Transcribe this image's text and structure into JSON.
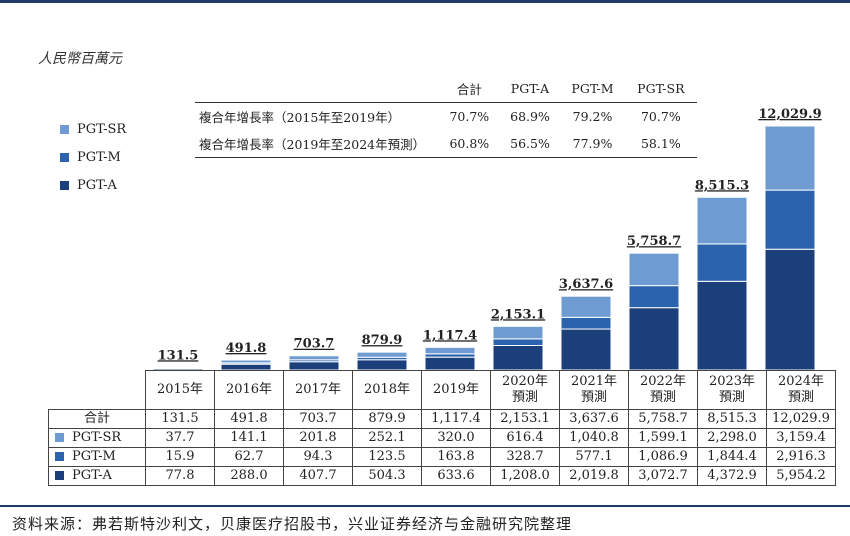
{
  "unit_label": "人民幣百萬元",
  "colors": {
    "pgt_a": "#1b3f7a",
    "pgt_m": "#2c63ad",
    "pgt_sr": "#6d9bd2",
    "rule": "#1f3a6b"
  },
  "legend": [
    {
      "name": "PGT-SR",
      "color": "#6d9bd2"
    },
    {
      "name": "PGT-M",
      "color": "#2c63ad"
    },
    {
      "name": "PGT-A",
      "color": "#1b3f7a"
    }
  ],
  "cagr_table": {
    "headers": [
      "合計",
      "PGT-A",
      "PGT-M",
      "PGT-SR"
    ],
    "rows": [
      {
        "label": "複合年增長率（2015年至2019年）",
        "values": [
          "70.7%",
          "68.9%",
          "79.2%",
          "70.7%"
        ]
      },
      {
        "label": "複合年增長率（2019年至2024年預測）",
        "values": [
          "60.8%",
          "56.5%",
          "77.9%",
          "58.1%"
        ]
      }
    ]
  },
  "chart_data": {
    "type": "bar",
    "stacked": true,
    "categories": [
      "2015年",
      "2016年",
      "2017年",
      "2018年",
      "2019年",
      "2020年\n預測",
      "2021年\n預測",
      "2022年\n預測",
      "2023年\n預測",
      "2024年\n預測"
    ],
    "series": [
      {
        "name": "PGT-A",
        "values": [
          77.8,
          288.0,
          407.7,
          504.3,
          633.6,
          1208.0,
          2019.8,
          3072.7,
          4372.9,
          5954.2
        ]
      },
      {
        "name": "PGT-M",
        "values": [
          15.9,
          62.7,
          94.3,
          123.5,
          163.8,
          328.7,
          577.1,
          1086.9,
          1844.4,
          2916.3
        ]
      },
      {
        "name": "PGT-SR",
        "values": [
          37.7,
          141.1,
          201.8,
          252.1,
          320.0,
          616.4,
          1040.8,
          1599.1,
          2298.0,
          3159.4
        ]
      }
    ],
    "totals": [
      131.5,
      491.8,
      703.7,
      879.9,
      1117.4,
      2153.1,
      3637.6,
      5758.7,
      8515.3,
      12029.9
    ],
    "total_labels": [
      "131.5",
      "491.8",
      "703.7",
      "879.9",
      "1,117.4",
      "2,153.1",
      "3,637.6",
      "5,758.7",
      "8,515.3",
      "12,029.9"
    ],
    "ylim": [
      0,
      12029.9
    ],
    "title": "",
    "xlabel": "",
    "ylabel": "人民幣百萬元"
  },
  "data_table": {
    "years": [
      {
        "line1": "2015年",
        "line2": ""
      },
      {
        "line1": "2016年",
        "line2": ""
      },
      {
        "line1": "2017年",
        "line2": ""
      },
      {
        "line1": "2018年",
        "line2": ""
      },
      {
        "line1": "2019年",
        "line2": ""
      },
      {
        "line1": "2020年",
        "line2": "預測"
      },
      {
        "line1": "2021年",
        "line2": "預測"
      },
      {
        "line1": "2022年",
        "line2": "預測"
      },
      {
        "line1": "2023年",
        "line2": "預測"
      },
      {
        "line1": "2024年",
        "line2": "預測"
      }
    ],
    "rows": [
      {
        "label": "合計",
        "color": "",
        "values": [
          "131.5",
          "491.8",
          "703.7",
          "879.9",
          "1,117.4",
          "2,153.1",
          "3,637.6",
          "5,758.7",
          "8,515.3",
          "12,029.9"
        ]
      },
      {
        "label": "PGT-SR",
        "color": "#6d9bd2",
        "values": [
          "37.7",
          "141.1",
          "201.8",
          "252.1",
          "320.0",
          "616.4",
          "1,040.8",
          "1,599.1",
          "2,298.0",
          "3,159.4"
        ]
      },
      {
        "label": "PGT-M",
        "color": "#2c63ad",
        "values": [
          "15.9",
          "62.7",
          "94.3",
          "123.5",
          "163.8",
          "328.7",
          "577.1",
          "1,086.9",
          "1,844.4",
          "2,916.3"
        ]
      },
      {
        "label": "PGT-A",
        "color": "#1b3f7a",
        "values": [
          "77.8",
          "288.0",
          "407.7",
          "504.3",
          "633.6",
          "1,208.0",
          "2,019.8",
          "3,072.7",
          "4,372.9",
          "5,954.2"
        ]
      }
    ]
  },
  "source": "资料来源：弗若斯特沙利文，贝康医疗招股书，兴业证券经济与金融研究院整理"
}
